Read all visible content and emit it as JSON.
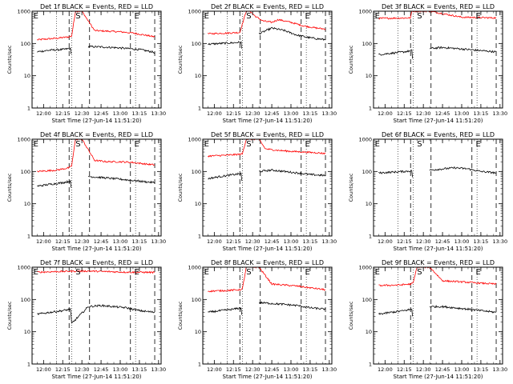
{
  "chart_data": [
    {
      "type": "line",
      "title": "Det 1f BLACK = Events, RED = LLD",
      "xlabel": "Start Time (27-Jun-14 11:51:20)",
      "ylabel": "Counts/sec",
      "yscale": "log",
      "ylim": [
        1,
        1000
      ],
      "xlim": [
        "11:51",
        "13:32"
      ],
      "x_ticks": [
        "12:00",
        "12:15",
        "12:30",
        "12:45",
        "13:00",
        "13:15",
        "13:30"
      ],
      "y_ticks": [
        "1",
        "10",
        "100",
        "1000"
      ],
      "markers": [
        {
          "label": "E",
          "time": "11:52"
        },
        {
          "label": "S",
          "time": "12:25"
        },
        {
          "label": "E",
          "time": "13:11"
        }
      ],
      "dashed_lines": [
        "12:20",
        "12:36",
        "13:08",
        "13:27"
      ],
      "dotted_lines": [
        "12:10",
        "12:22",
        "13:12",
        "13:32"
      ],
      "gap": [
        "12:25",
        "12:35"
      ],
      "series": [
        {
          "name": "LLD",
          "color": "#ff0000",
          "x": [
            "11:55",
            "12:10",
            "12:20",
            "12:22",
            "12:25",
            "12:30",
            "12:40",
            "12:50",
            "13:00",
            "13:10",
            "13:20",
            "13:27"
          ],
          "y": [
            130,
            145,
            160,
            170,
            1000,
            1000,
            250,
            240,
            230,
            210,
            180,
            160
          ]
        },
        {
          "name": "Events",
          "color": "#000000",
          "x": [
            "11:55",
            "12:05",
            "12:15",
            "12:21",
            "12:22",
            "12:35",
            "12:45",
            "12:55",
            "13:05",
            "13:15",
            "13:25",
            "13:27"
          ],
          "y": [
            55,
            62,
            65,
            70,
            30,
            80,
            78,
            75,
            70,
            65,
            55,
            52
          ]
        }
      ]
    },
    {
      "type": "line",
      "title": "Det 2f BLACK = Events, RED = LLD",
      "xlabel": "Start Time (27-Jun-14 11:51:20)",
      "ylabel": "Counts/sec",
      "yscale": "log",
      "ylim": [
        1,
        1000
      ],
      "xlim": [
        "11:51",
        "13:32"
      ],
      "x_ticks": [
        "12:00",
        "12:15",
        "12:30",
        "12:45",
        "13:00",
        "13:15",
        "13:30"
      ],
      "y_ticks": [
        "1",
        "10",
        "100",
        "1000"
      ],
      "markers": [
        {
          "label": "E",
          "time": "11:52"
        },
        {
          "label": "S",
          "time": "12:25"
        },
        {
          "label": "E",
          "time": "13:11"
        }
      ],
      "dashed_lines": [
        "12:20",
        "12:36",
        "13:08",
        "13:27"
      ],
      "dotted_lines": [
        "12:10",
        "12:22",
        "13:12",
        "13:32"
      ],
      "gap": [
        "12:25",
        "12:35"
      ],
      "series": [
        {
          "name": "LLD",
          "color": "#ff0000",
          "x": [
            "11:55",
            "12:10",
            "12:20",
            "12:25",
            "12:28",
            "12:32",
            "12:38",
            "12:45",
            "12:50",
            "13:00",
            "13:10",
            "13:20",
            "13:27"
          ],
          "y": [
            200,
            210,
            220,
            1000,
            1000,
            700,
            500,
            450,
            550,
            450,
            350,
            300,
            280
          ]
        },
        {
          "name": "Events",
          "color": "#000000",
          "x": [
            "11:55",
            "12:05",
            "12:15",
            "12:21",
            "12:22",
            "12:35",
            "12:45",
            "12:55",
            "13:05",
            "13:15",
            "13:27"
          ],
          "y": [
            95,
            100,
            105,
            110,
            40,
            200,
            300,
            250,
            180,
            150,
            130
          ]
        }
      ]
    },
    {
      "type": "line",
      "title": "Det 3f BLACK = Events, RED = LLD",
      "xlabel": "Start Time (27-Jun-14 11:51:20)",
      "ylabel": "Counts/sec",
      "yscale": "log",
      "ylim": [
        1,
        1000
      ],
      "xlim": [
        "11:51",
        "13:32"
      ],
      "x_ticks": [
        "12:00",
        "12:15",
        "12:30",
        "12:45",
        "13:00",
        "13:15",
        "13:30"
      ],
      "y_ticks": [
        "1",
        "10",
        "100",
        "1000"
      ],
      "markers": [
        {
          "label": "E",
          "time": "11:52"
        },
        {
          "label": "S",
          "time": "12:25"
        },
        {
          "label": "E",
          "time": "13:11"
        }
      ],
      "dashed_lines": [
        "12:20",
        "12:36",
        "13:08",
        "13:27"
      ],
      "dotted_lines": [
        "12:10",
        "12:22",
        "13:12",
        "13:32"
      ],
      "gap": [
        "12:25",
        "12:35"
      ],
      "series": [
        {
          "name": "LLD",
          "color": "#ff0000",
          "x": [
            "11:55",
            "12:20",
            "12:21",
            "12:35",
            "13:00",
            "13:27"
          ],
          "y": [
            600,
            620,
            1000,
            1000,
            650,
            620
          ]
        },
        {
          "name": "Events",
          "color": "#000000",
          "x": [
            "11:55",
            "12:05",
            "12:15",
            "12:21",
            "12:22",
            "12:35",
            "12:45",
            "12:55",
            "13:05",
            "13:15",
            "13:27"
          ],
          "y": [
            45,
            50,
            55,
            60,
            20,
            70,
            75,
            70,
            65,
            60,
            55
          ]
        }
      ]
    },
    {
      "type": "line",
      "title": "Det 4f BLACK = Events, RED = LLD",
      "xlabel": "Start Time (27-Jun-14 11:51:20)",
      "ylabel": "Counts/sec",
      "yscale": "log",
      "ylim": [
        1,
        1000
      ],
      "xlim": [
        "11:51",
        "13:32"
      ],
      "x_ticks": [
        "12:00",
        "12:15",
        "12:30",
        "12:45",
        "13:00",
        "13:15",
        "13:30"
      ],
      "y_ticks": [
        "1",
        "10",
        "100",
        "1000"
      ],
      "markers": [
        {
          "label": "E",
          "time": "11:52"
        },
        {
          "label": "S",
          "time": "12:25"
        },
        {
          "label": "E",
          "time": "13:11"
        }
      ],
      "dashed_lines": [
        "12:20",
        "12:36",
        "13:08",
        "13:27"
      ],
      "dotted_lines": [
        "12:10",
        "12:22",
        "13:12",
        "13:32"
      ],
      "gap": [
        "12:25",
        "12:35"
      ],
      "series": [
        {
          "name": "LLD",
          "color": "#ff0000",
          "x": [
            "11:55",
            "12:10",
            "12:20",
            "12:22",
            "12:25",
            "12:30",
            "12:40",
            "12:50",
            "13:00",
            "13:10",
            "13:20",
            "13:27"
          ],
          "y": [
            100,
            110,
            130,
            150,
            1000,
            1000,
            220,
            200,
            200,
            190,
            170,
            160
          ]
        },
        {
          "name": "Events",
          "color": "#000000",
          "x": [
            "11:55",
            "12:05",
            "12:15",
            "12:21",
            "12:22",
            "12:35",
            "12:45",
            "12:55",
            "13:05",
            "13:15",
            "13:27"
          ],
          "y": [
            35,
            40,
            45,
            50,
            18,
            70,
            65,
            60,
            55,
            50,
            45
          ]
        }
      ]
    },
    {
      "type": "line",
      "title": "Det 5f BLACK = Events, RED = LLD",
      "xlabel": "Start Time (27-Jun-14 11:51:20)",
      "ylabel": "Counts/sec",
      "yscale": "log",
      "ylim": [
        1,
        1000
      ],
      "xlim": [
        "11:51",
        "13:32"
      ],
      "x_ticks": [
        "12:00",
        "12:15",
        "12:30",
        "12:45",
        "13:00",
        "13:15",
        "13:30"
      ],
      "y_ticks": [
        "1",
        "10",
        "100",
        "1000"
      ],
      "markers": [
        {
          "label": "E",
          "time": "11:52"
        },
        {
          "label": "S",
          "time": "12:25"
        },
        {
          "label": "E",
          "time": "13:11"
        }
      ],
      "dashed_lines": [
        "12:20",
        "12:36",
        "13:08",
        "13:27"
      ],
      "dotted_lines": [
        "12:10",
        "12:22",
        "13:12",
        "13:32"
      ],
      "gap": [
        "12:25",
        "12:35"
      ],
      "series": [
        {
          "name": "LLD",
          "color": "#ff0000",
          "x": [
            "11:55",
            "12:10",
            "12:20",
            "12:22",
            "12:25",
            "12:35",
            "12:40",
            "12:50",
            "13:00",
            "13:10",
            "13:20",
            "13:27"
          ],
          "y": [
            300,
            320,
            340,
            350,
            1000,
            1000,
            500,
            450,
            420,
            400,
            380,
            360
          ]
        },
        {
          "name": "Events",
          "color": "#000000",
          "x": [
            "11:55",
            "12:05",
            "12:15",
            "12:21",
            "12:22",
            "12:35",
            "12:45",
            "12:55",
            "13:05",
            "13:15",
            "13:27"
          ],
          "y": [
            60,
            70,
            80,
            85,
            30,
            100,
            110,
            100,
            90,
            80,
            75
          ]
        }
      ]
    },
    {
      "type": "line",
      "title": "Det 6f BLACK = Events, RED = LLD",
      "xlabel": "Start Time (27-Jun-14 11:51:20)",
      "ylabel": "Counts/sec",
      "yscale": "log",
      "ylim": [
        1,
        1000
      ],
      "xlim": [
        "11:51",
        "13:32"
      ],
      "x_ticks": [
        "12:00",
        "12:15",
        "12:30",
        "12:45",
        "13:00",
        "13:15",
        "13:30"
      ],
      "y_ticks": [
        "1",
        "10",
        "100",
        "1000"
      ],
      "markers": [
        {
          "label": "E",
          "time": "11:52"
        },
        {
          "label": "S",
          "time": "12:25"
        },
        {
          "label": "E",
          "time": "13:11"
        }
      ],
      "dashed_lines": [
        "12:20",
        "12:36",
        "13:08",
        "13:27"
      ],
      "dotted_lines": [
        "12:10",
        "12:22",
        "13:12",
        "13:32"
      ],
      "gap": [
        "12:25",
        "12:35"
      ],
      "series": [
        {
          "name": "Events",
          "color": "#000000",
          "x": [
            "11:55",
            "12:05",
            "12:15",
            "12:21",
            "12:22",
            "12:35",
            "12:45",
            "12:55",
            "13:05",
            "13:15",
            "13:27"
          ],
          "y": [
            90,
            95,
            100,
            105,
            40,
            110,
            120,
            130,
            120,
            100,
            90
          ]
        }
      ]
    },
    {
      "type": "line",
      "title": "Det 7f BLACK = Events, RED = LLD",
      "xlabel": "Start Time (27-Jun-14 11:51:20)",
      "ylabel": "Counts/sec",
      "yscale": "log",
      "ylim": [
        1,
        1000
      ],
      "xlim": [
        "11:51",
        "13:32"
      ],
      "x_ticks": [
        "12:00",
        "12:15",
        "12:30",
        "12:45",
        "13:00",
        "13:15",
        "13:30"
      ],
      "y_ticks": [
        "1",
        "10",
        "100",
        "1000"
      ],
      "markers": [
        {
          "label": "E",
          "time": "11:52"
        },
        {
          "label": "S",
          "time": "12:25"
        },
        {
          "label": "E",
          "time": "13:11"
        }
      ],
      "dashed_lines": [
        "12:20",
        "12:36",
        "13:08",
        "13:27"
      ],
      "dotted_lines": [
        "12:10",
        "12:22",
        "13:12",
        "13:32"
      ],
      "gap": [
        "12:21",
        "12:35"
      ],
      "series": [
        {
          "name": "LLD",
          "color": "#ff0000",
          "x": [
            "11:55",
            "12:05",
            "12:15",
            "12:21",
            "12:35",
            "12:45",
            "12:55",
            "13:05",
            "13:15",
            "13:27"
          ],
          "y": [
            700,
            720,
            740,
            750,
            760,
            740,
            720,
            700,
            700,
            690
          ]
        },
        {
          "name": "Events",
          "color": "#000000",
          "x": [
            "11:55",
            "12:05",
            "12:15",
            "12:21",
            "12:22",
            "12:35",
            "12:45",
            "12:55",
            "13:05",
            "13:15",
            "13:27"
          ],
          "y": [
            35,
            40,
            45,
            50,
            18,
            60,
            65,
            60,
            55,
            45,
            40
          ]
        }
      ]
    },
    {
      "type": "line",
      "title": "Det 8f BLACK = Events, RED = LLD",
      "xlabel": "Start Time (27-Jun-14 11:51:20)",
      "ylabel": "Counts/sec",
      "yscale": "log",
      "ylim": [
        1,
        1000
      ],
      "xlim": [
        "11:51",
        "13:32"
      ],
      "x_ticks": [
        "12:00",
        "12:15",
        "12:30",
        "12:45",
        "13:00",
        "13:15",
        "13:30"
      ],
      "y_ticks": [
        "1",
        "10",
        "100",
        "1000"
      ],
      "markers": [
        {
          "label": "E",
          "time": "11:52"
        },
        {
          "label": "S",
          "time": "12:25"
        },
        {
          "label": "E",
          "time": "13:11"
        }
      ],
      "dashed_lines": [
        "12:20",
        "12:36",
        "13:08",
        "13:27"
      ],
      "dotted_lines": [
        "12:10",
        "12:22",
        "13:12",
        "13:32"
      ],
      "gap": [
        "12:25",
        "12:35"
      ],
      "series": [
        {
          "name": "LLD",
          "color": "#ff0000",
          "x": [
            "11:55",
            "12:10",
            "12:20",
            "12:22",
            "12:25",
            "12:35",
            "12:45",
            "12:55",
            "13:05",
            "13:15",
            "13:27"
          ],
          "y": [
            180,
            190,
            200,
            210,
            1000,
            1000,
            300,
            280,
            260,
            230,
            200
          ]
        },
        {
          "name": "Events",
          "color": "#000000",
          "x": [
            "11:55",
            "12:05",
            "12:15",
            "12:21",
            "12:22",
            "12:35",
            "12:45",
            "12:55",
            "13:05",
            "13:15",
            "13:27"
          ],
          "y": [
            40,
            45,
            50,
            55,
            20,
            80,
            75,
            70,
            65,
            55,
            50
          ]
        }
      ]
    },
    {
      "type": "line",
      "title": "Det 9f BLACK = Events, RED = LLD",
      "xlabel": "Start Time (27-Jun-14 11:51:20)",
      "ylabel": "Counts/sec",
      "yscale": "log",
      "ylim": [
        1,
        1000
      ],
      "xlim": [
        "11:51",
        "13:32"
      ],
      "x_ticks": [
        "12:00",
        "12:15",
        "12:30",
        "12:45",
        "13:00",
        "13:15",
        "13:30"
      ],
      "y_ticks": [
        "1",
        "10",
        "100",
        "1000"
      ],
      "markers": [
        {
          "label": "E",
          "time": "11:52"
        },
        {
          "label": "S",
          "time": "12:25"
        },
        {
          "label": "E",
          "time": "13:11"
        }
      ],
      "dashed_lines": [
        "12:20",
        "12:36",
        "13:08",
        "13:27"
      ],
      "dotted_lines": [
        "12:10",
        "12:22",
        "13:12",
        "13:32"
      ],
      "gap": [
        "12:25",
        "12:35"
      ],
      "series": [
        {
          "name": "LLD",
          "color": "#ff0000",
          "x": [
            "11:55",
            "12:10",
            "12:20",
            "12:22",
            "12:25",
            "12:35",
            "12:45",
            "12:55",
            "13:05",
            "13:15",
            "13:27"
          ],
          "y": [
            270,
            280,
            300,
            320,
            1000,
            1000,
            380,
            360,
            340,
            320,
            300
          ]
        },
        {
          "name": "Events",
          "color": "#000000",
          "x": [
            "11:55",
            "12:05",
            "12:15",
            "12:21",
            "12:22",
            "12:35",
            "12:45",
            "12:55",
            "13:05",
            "13:15",
            "13:27"
          ],
          "y": [
            35,
            40,
            45,
            50,
            18,
            60,
            60,
            55,
            50,
            45,
            40
          ]
        }
      ]
    }
  ]
}
